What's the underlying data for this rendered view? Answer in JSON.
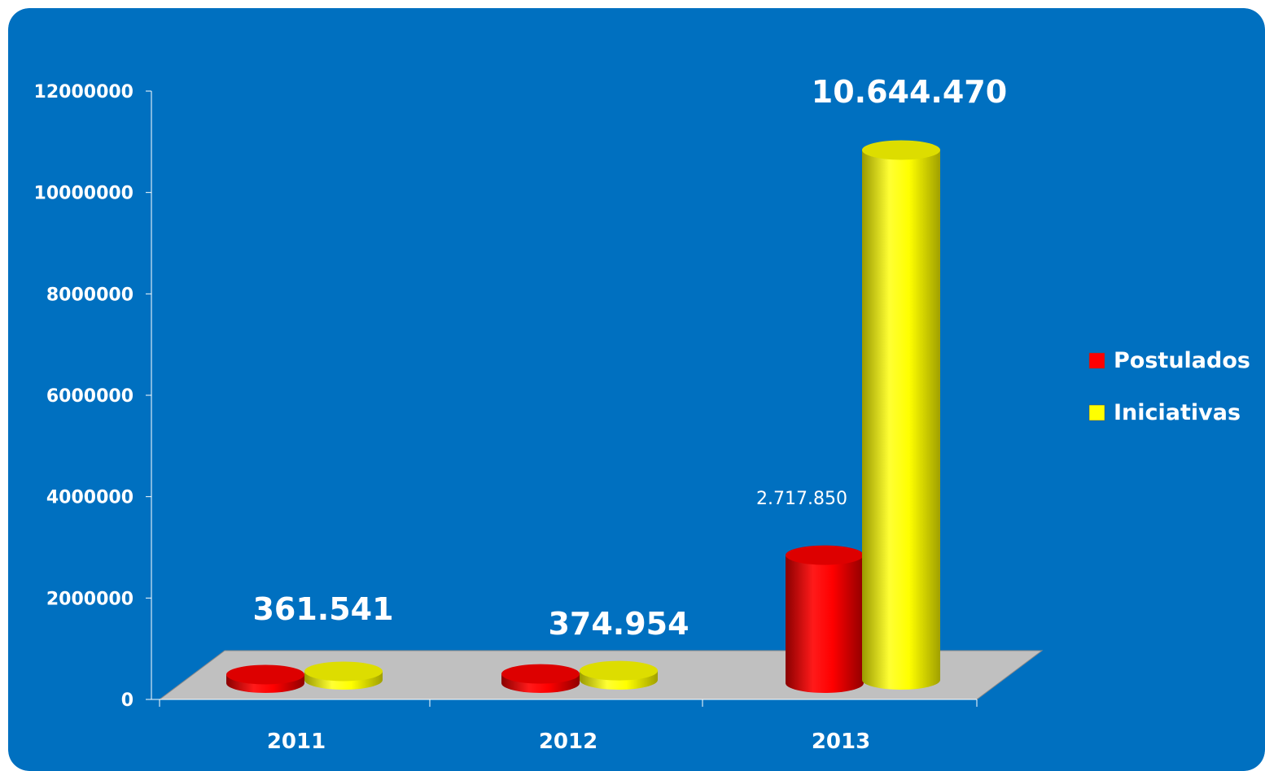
{
  "chart_data": {
    "type": "bar",
    "title": "",
    "xlabel": "",
    "ylabel": "",
    "categories": [
      "2011",
      "2012",
      "2013"
    ],
    "ylim": [
      0,
      12000000
    ],
    "y_ticks": [
      "0",
      "2000000",
      "4000000",
      "6000000",
      "8000000",
      "10000000",
      "12000000"
    ],
    "series": [
      {
        "name": "Postulados",
        "values": [
          361541,
          374954,
          2717850
        ]
      },
      {
        "name": "Iniciativas",
        "values": [
          361541,
          374954,
          10644470
        ]
      }
    ],
    "data_labels": [
      "361.541",
      "374.954",
      "2.717.850",
      "10.644.470"
    ],
    "legend_position": "right",
    "grid": false,
    "colors": {
      "background": "#0070c0",
      "postulados": "#ff0000",
      "iniciativas": "#ffff00",
      "floor": "#c0c0c0",
      "text": "#ffffff"
    }
  }
}
